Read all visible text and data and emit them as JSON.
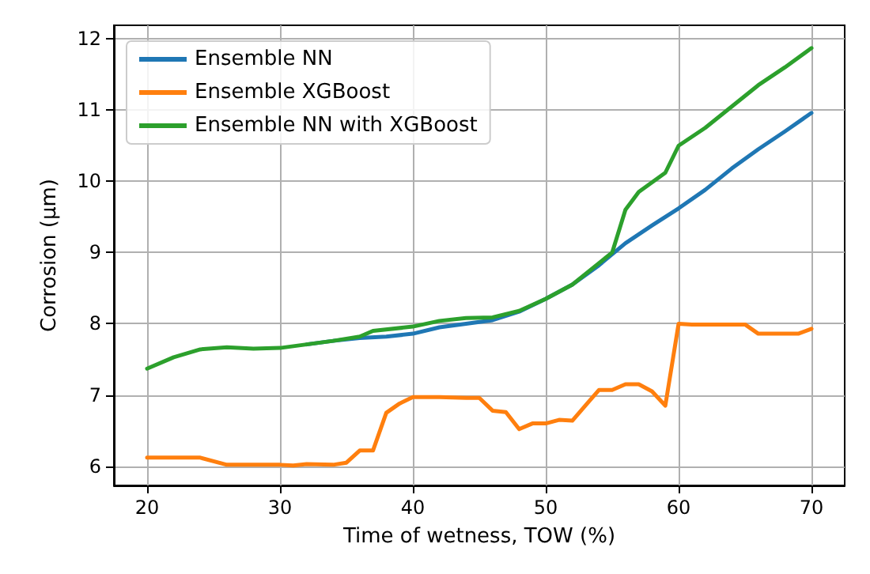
{
  "chart_data": {
    "type": "line",
    "xlabel": "Time of wetness, TOW (%)",
    "ylabel": "Corrosion (μm)",
    "xlim": [
      17.5,
      72.5
    ],
    "xticks": [
      20,
      30,
      40,
      50,
      60,
      70
    ],
    "ylim": [
      5.73,
      12.19
    ],
    "yticks": [
      6,
      7,
      8,
      9,
      10,
      11,
      12
    ],
    "grid": true,
    "legend": "top left",
    "marker": "none",
    "line_style": "solid",
    "series": [
      {
        "name": "Ensemble NN",
        "color": "#1f77b4",
        "x": [
          32,
          34,
          36,
          38,
          40,
          42,
          44,
          46,
          48,
          50,
          52,
          54,
          56,
          58,
          60,
          62,
          64,
          66,
          68,
          70
        ],
        "values": [
          7.71,
          7.76,
          7.8,
          7.82,
          7.86,
          7.95,
          8.0,
          8.05,
          8.17,
          8.35,
          8.55,
          8.82,
          9.13,
          9.38,
          9.62,
          9.88,
          10.18,
          10.45,
          10.7,
          10.96
        ]
      },
      {
        "name": "Ensemble XGBoost",
        "color": "#ff7f0e",
        "x": [
          20,
          24,
          26,
          30,
          31,
          32,
          34,
          35,
          36,
          37,
          38,
          39,
          40,
          42,
          44,
          45,
          46,
          47,
          48,
          49,
          50,
          51,
          52,
          54,
          55,
          56,
          57,
          58,
          59,
          60,
          61,
          65,
          66,
          69,
          70
        ],
        "values": [
          6.12,
          6.12,
          6.02,
          6.02,
          6.01,
          6.03,
          6.02,
          6.05,
          6.22,
          6.22,
          6.75,
          6.88,
          6.97,
          6.97,
          6.96,
          6.96,
          6.78,
          6.76,
          6.52,
          6.6,
          6.6,
          6.65,
          6.64,
          7.07,
          7.07,
          7.15,
          7.15,
          7.05,
          6.85,
          8.0,
          7.99,
          7.99,
          7.86,
          7.86,
          7.93
        ]
      },
      {
        "name": "Ensemble NN with XGBoost",
        "color": "#2ca02c",
        "x": [
          20,
          22,
          24,
          26,
          28,
          30,
          32,
          34,
          36,
          37,
          40,
          42,
          44,
          46,
          48,
          50,
          52,
          54,
          55,
          56,
          57,
          59,
          60,
          62,
          64,
          66,
          68,
          70
        ],
        "values": [
          7.37,
          7.53,
          7.64,
          7.67,
          7.65,
          7.66,
          7.71,
          7.76,
          7.82,
          7.9,
          7.96,
          8.04,
          8.08,
          8.09,
          8.18,
          8.35,
          8.55,
          8.85,
          9.0,
          9.6,
          9.85,
          10.12,
          10.5,
          10.75,
          11.05,
          11.35,
          11.6,
          11.87
        ]
      }
    ]
  }
}
